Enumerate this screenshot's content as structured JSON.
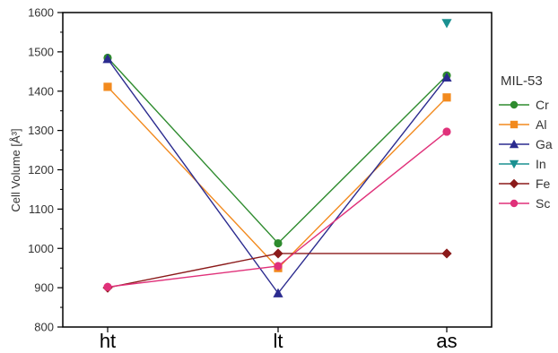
{
  "chart_data": {
    "type": "line",
    "categories": [
      "ht",
      "lt",
      "as"
    ],
    "ylabel": "Cell Volume [Å³]",
    "xlabel": "",
    "ylim": [
      800,
      1600
    ],
    "yticks": [
      800,
      900,
      1000,
      1100,
      1200,
      1300,
      1400,
      1500,
      1600
    ],
    "legend_title": "MIL-53",
    "legend_position": "right",
    "series": [
      {
        "name": "Cr",
        "marker": "circle",
        "color": "#2e8b2e",
        "values": [
          1485,
          1013,
          1440
        ]
      },
      {
        "name": "Al",
        "marker": "square",
        "color": "#f28a1e",
        "values": [
          1411,
          950,
          1384
        ]
      },
      {
        "name": "Ga",
        "marker": "triangle-up",
        "color": "#2b2b8f",
        "values": [
          1482,
          886,
          1435
        ]
      },
      {
        "name": "In",
        "marker": "triangle-down",
        "color": "#1a9090",
        "values": [
          null,
          null,
          1573
        ]
      },
      {
        "name": "Fe",
        "marker": "diamond",
        "color": "#8b1a1a",
        "values": [
          900,
          987,
          987
        ]
      },
      {
        "name": "Sc",
        "marker": "circle",
        "color": "#e0317a",
        "values": [
          902,
          955,
          1297
        ]
      }
    ]
  }
}
